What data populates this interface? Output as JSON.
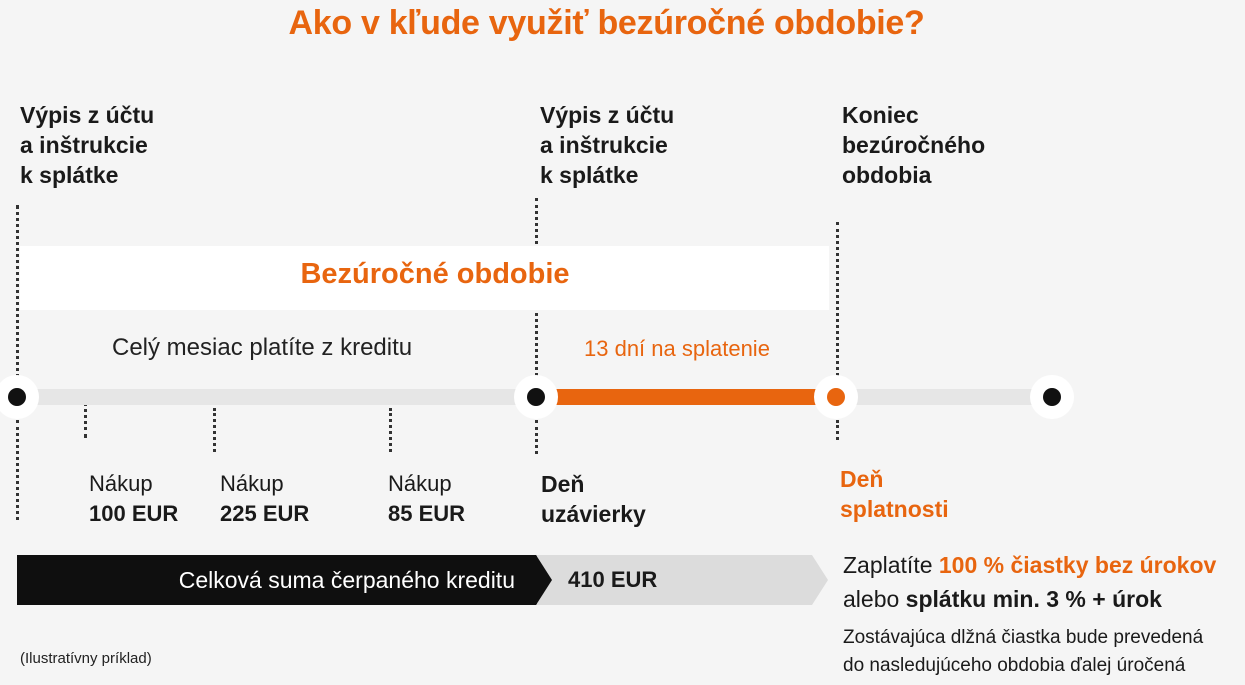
{
  "title": "Ako v kľude využiť bezúročné obdobie?",
  "headers": {
    "statement_1": "Výpis z účtu\na inštrukcie\nk splátke",
    "statement_2": "Výpis z účtu\na inštrukcie\nk splátke",
    "end_period": "Koniec\nbezúročného\nobdobia"
  },
  "interest_free_period": "Bezúročné obdobie",
  "month_text": "Celý mesiac platíte z kreditu",
  "days_text": "13 dní na splatenie",
  "purchases": [
    {
      "label": "Nákup",
      "amount": "100 EUR"
    },
    {
      "label": "Nákup",
      "amount": "225 EUR"
    },
    {
      "label": "Nákup",
      "amount": "85 EUR"
    }
  ],
  "closing_day": "Deň\nuzávierky",
  "due_day": "Deň\nsplatnosti",
  "total_bar": {
    "label": "Celková suma čerpaného kreditu",
    "amount": "410 EUR"
  },
  "payment": {
    "pay_prefix": "Zaplatíte",
    "pay_full": "100 % čiastky bez úrokov",
    "or": "alebo",
    "min_payment": "splátku min. 3 % + úrok"
  },
  "note": {
    "line1": "Zostávajúca dlžná čiastka bude prevedená",
    "line2": "do nasledujúceho obdobia ďalej úročená"
  },
  "footnote": "(Ilustratívny príklad)",
  "colors": {
    "accent": "#e8650f",
    "dark": "#0f0f0f",
    "track": "#e6e6e6",
    "grey_bar": "#dcdcdc"
  }
}
